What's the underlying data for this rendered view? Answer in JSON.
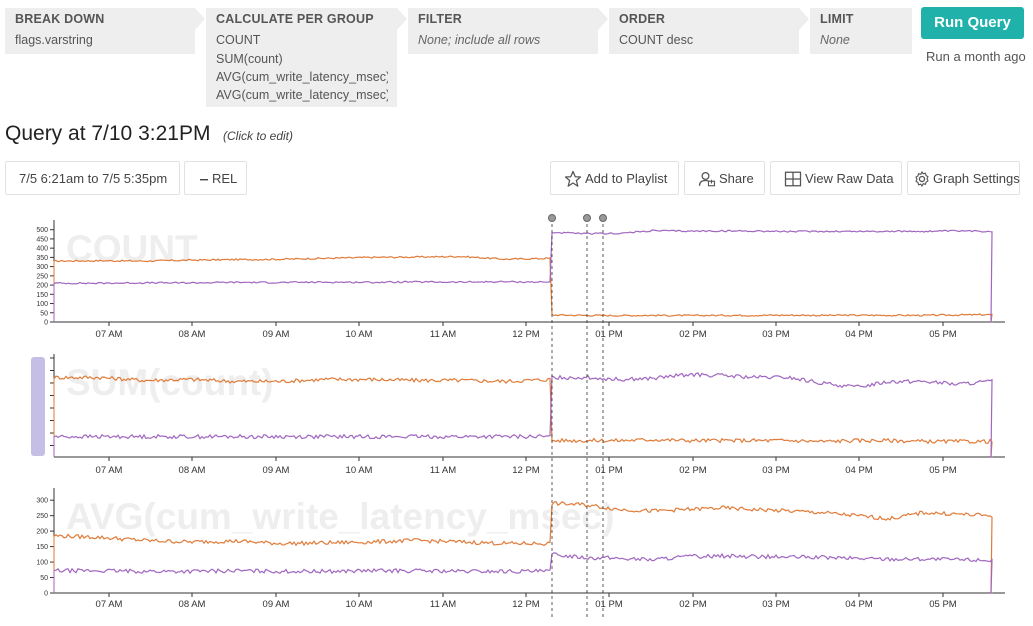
{
  "query_builder": {
    "breakdown": {
      "header": "BREAK DOWN",
      "lines": [
        "flags.varstring"
      ]
    },
    "calculate": {
      "header": "CALCULATE PER GROUP",
      "lines": [
        "COUNT",
        "SUM(count)",
        "AVG(cum_write_latency_msec)",
        "AVG(cum_write_latency_msec)"
      ]
    },
    "filter": {
      "header": "FILTER",
      "lines": [
        "None; include all rows"
      ]
    },
    "order": {
      "header": "ORDER",
      "lines": [
        "COUNT desc"
      ]
    },
    "limit": {
      "header": "LIMIT",
      "lines": [
        "None"
      ]
    }
  },
  "run": {
    "label": "Run Query",
    "last_run": "Run a month ago"
  },
  "query": {
    "title": "Query at 7/10 3:21PM",
    "edit_hint": "(Click to edit)"
  },
  "toolbar": {
    "time_range": "7/5 6:21am to 7/5 5:35pm",
    "rel": "REL",
    "add_playlist": "Add to Playlist",
    "share": "Share",
    "view_raw": "View Raw Data",
    "graph_settings": "Graph Settings"
  },
  "colors": {
    "accent": "#20b2aa",
    "series_orange": "#e07b39",
    "series_purple": "#a066c0"
  },
  "chart_data": [
    {
      "type": "line",
      "title": "COUNT",
      "x_ticks": [
        "07 AM",
        "08 AM",
        "09 AM",
        "10 AM",
        "11 AM",
        "12 PM",
        "01 PM",
        "02 PM",
        "03 PM",
        "04 PM",
        "05 PM"
      ],
      "y_ticks": [
        0,
        50,
        100,
        150,
        200,
        250,
        300,
        350,
        400,
        450,
        500
      ],
      "ylim": [
        0,
        520
      ],
      "series": [
        {
          "color": "orange",
          "values": [
            330,
            332,
            330,
            335,
            338,
            340,
            345,
            350,
            352,
            355,
            340,
            345,
            38,
            36,
            35,
            36,
            35,
            36,
            36,
            37,
            36,
            37,
            36,
            36,
            38,
            40
          ]
        },
        {
          "color": "purple",
          "values": [
            210,
            210,
            212,
            212,
            215,
            214,
            216,
            215,
            217,
            216,
            218,
            216,
            485,
            478,
            480,
            495,
            492,
            493,
            493,
            490,
            491,
            491,
            491,
            491,
            493,
            491
          ]
        }
      ]
    },
    {
      "type": "line",
      "title": "SUM(count)",
      "x_ticks": [
        "07 AM",
        "08 AM",
        "09 AM",
        "10 AM",
        "11 AM",
        "12 PM",
        "01 PM",
        "02 PM",
        "03 PM",
        "04 PM",
        "05 PM"
      ],
      "y_ticks": [],
      "ylim": [
        0,
        100
      ],
      "series": [
        {
          "color": "orange",
          "values": [
            82,
            82,
            79,
            80,
            78,
            78,
            80,
            80,
            79,
            79,
            78,
            80,
            17,
            17,
            17,
            18,
            17,
            17,
            17,
            17,
            16,
            17,
            17,
            16,
            16,
            16
          ]
        },
        {
          "color": "purple",
          "values": [
            21,
            21,
            21,
            21,
            21,
            21,
            21,
            21,
            21,
            21,
            21,
            21,
            82,
            82,
            80,
            81,
            85,
            84,
            82,
            82,
            76,
            72,
            78,
            78,
            75,
            78
          ]
        }
      ]
    },
    {
      "type": "line",
      "title": "AVG(cum_write_latency_msec)",
      "x_ticks": [
        "07 AM",
        "08 AM",
        "09 AM",
        "10 AM",
        "11 AM",
        "12 PM",
        "01 PM",
        "02 PM",
        "03 PM",
        "04 PM",
        "05 PM"
      ],
      "y_ticks": [
        0,
        50,
        100,
        150,
        200,
        250,
        300
      ],
      "ylim": [
        0,
        320
      ],
      "series": [
        {
          "color": "orange",
          "values": [
            185,
            180,
            170,
            165,
            168,
            160,
            162,
            165,
            170,
            165,
            160,
            160,
            290,
            285,
            270,
            265,
            270,
            275,
            270,
            265,
            260,
            250,
            240,
            260,
            255,
            250
          ]
        },
        {
          "color": "purple",
          "values": [
            72,
            72,
            70,
            70,
            72,
            70,
            70,
            72,
            72,
            70,
            70,
            70,
            125,
            115,
            112,
            108,
            118,
            120,
            118,
            116,
            115,
            112,
            110,
            110,
            108,
            106
          ]
        }
      ]
    }
  ]
}
